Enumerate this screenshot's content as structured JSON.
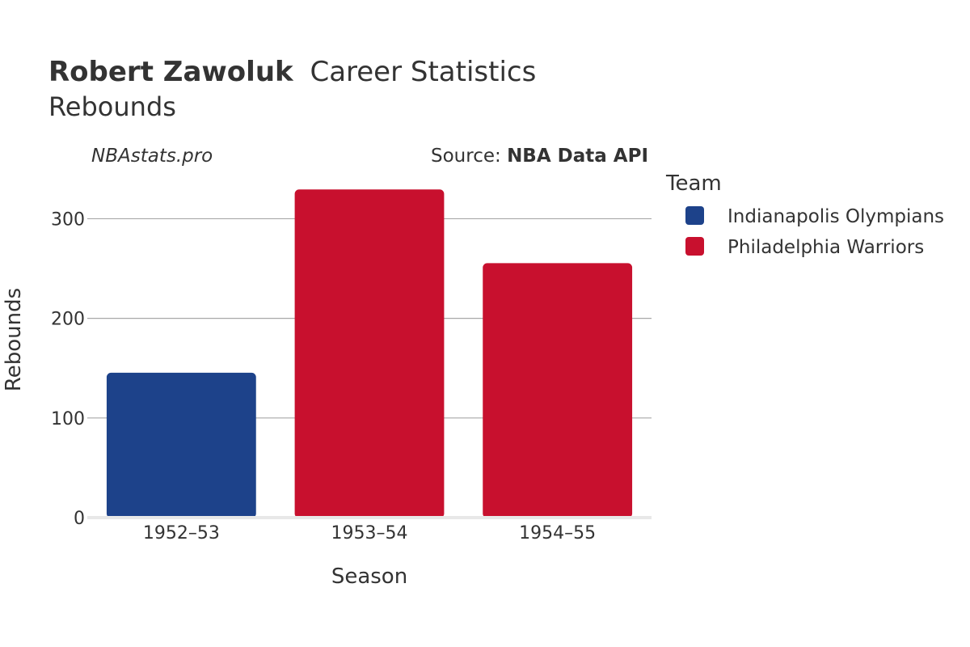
{
  "header": {
    "player_name": "Robert Zawoluk",
    "title_suffix": "Career Statistics",
    "subtitle": "Rebounds",
    "watermark": "NBAstats.pro",
    "source_prefix": "Source: ",
    "source_name": "NBA Data API"
  },
  "legend": {
    "title": "Team",
    "items": [
      {
        "label": "Indianapolis Olympians",
        "color": "#1d428a"
      },
      {
        "label": "Philadelphia Warriors",
        "color": "#c8102e"
      }
    ]
  },
  "chart_data": {
    "type": "bar",
    "title": "Robert Zawoluk Career Statistics",
    "subtitle": "Rebounds",
    "xlabel": "Season",
    "ylabel": "Rebounds",
    "categories": [
      "1952–53",
      "1953–54",
      "1954–55"
    ],
    "values": [
      145,
      329,
      255
    ],
    "teams": [
      "Indianapolis Olympians",
      "Philadelphia Warriors",
      "Philadelphia Warriors"
    ],
    "colors": [
      "#1d428a",
      "#c8102e",
      "#c8102e"
    ],
    "ylim": [
      0,
      345
    ],
    "yticks": [
      0,
      100,
      200,
      300
    ],
    "grid": true,
    "legend_position": "right"
  }
}
